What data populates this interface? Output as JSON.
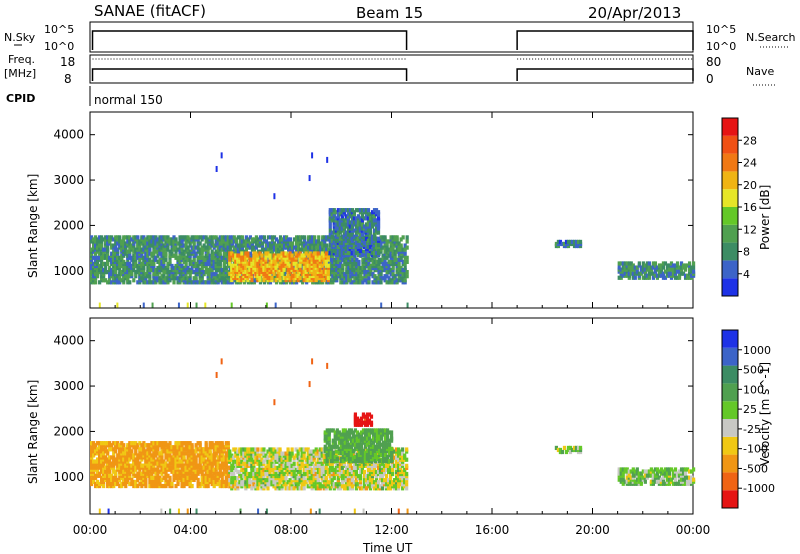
{
  "header": {
    "station": "SANAE (fitACF)",
    "beam": "Beam 15",
    "date": "20/Apr/2013"
  },
  "strips": {
    "nsky_label": "N.Sky",
    "nsky_ticks": [
      "10^5",
      "10^0"
    ],
    "nsearch_label": "N.Search",
    "nsearch_ticks": [
      "10^5",
      "10^0"
    ],
    "freq_label_1": "Freq.",
    "freq_label_2": "[MHz]",
    "freq_ticks": [
      "18",
      "8"
    ],
    "nave_label": "Nave",
    "nave_ticks": [
      "80",
      "0"
    ],
    "cpid_label": "CPID",
    "cpid_value": "normal 150"
  },
  "colors": {
    "scatter_gray": "#c8c8c4",
    "power_scale": [
      "#1e32e6",
      "#3c64c8",
      "#3c8c64",
      "#50a050",
      "#64c828",
      "#e6e628",
      "#f0b414",
      "#f07814",
      "#f05014",
      "#e61414"
    ],
    "velocity_scale": [
      "#1e32e6",
      "#3c64c8",
      "#3c8c64",
      "#50a050",
      "#64c828",
      "#c8c8c4",
      "#f0c814",
      "#f09614",
      "#f06414",
      "#e61414"
    ]
  },
  "chart_data": [
    {
      "type": "heatmap",
      "title": "Power",
      "ylabel": "Slant Range [km]",
      "xlabel": "Time UT",
      "xlim": [
        "00:00",
        "24:00"
      ],
      "ylim": [
        180,
        4500
      ],
      "x_ticks": [
        "00:00",
        "04:00",
        "08:00",
        "12:00",
        "16:00",
        "20:00",
        "00:00"
      ],
      "y_ticks": [
        1000,
        2000,
        3000,
        4000
      ],
      "colorbar": {
        "label": "Power [dB]",
        "ticks": [
          "4",
          "8",
          "12",
          "16",
          "20",
          "24",
          "28"
        ],
        "range": [
          0,
          30
        ]
      },
      "regions": [
        {
          "t_start": 0.0,
          "t_end": 12.6,
          "range_min": 700,
          "range_max": 1700,
          "value": 8
        },
        {
          "t_start": 5.5,
          "t_end": 9.5,
          "range_min": 750,
          "range_max": 1350,
          "value": 20
        },
        {
          "t_start": 9.5,
          "t_end": 11.5,
          "range_min": 1300,
          "range_max": 2300,
          "value": 6
        },
        {
          "t_start": 18.5,
          "t_end": 19.5,
          "range_min": 1500,
          "range_max": 1600,
          "value": 6
        },
        {
          "t_start": 21.0,
          "t_end": 24.0,
          "range_min": 800,
          "range_max": 1150,
          "value": 8
        }
      ]
    },
    {
      "type": "heatmap",
      "title": "Velocity",
      "ylabel": "Slant Range [km]",
      "xlabel": "Time UT",
      "xlim": [
        "00:00",
        "24:00"
      ],
      "ylim": [
        180,
        4500
      ],
      "x_ticks": [
        "00:00",
        "04:00",
        "08:00",
        "12:00",
        "16:00",
        "20:00",
        "00:00"
      ],
      "y_ticks": [
        1000,
        2000,
        3000,
        4000
      ],
      "colorbar": {
        "label": "Velocity [m s^-1]",
        "ticks": [
          "1000",
          "500",
          "100",
          "25",
          "-25",
          "-100",
          "-500",
          "-1000"
        ]
      },
      "regions": [
        {
          "t_start": 0.0,
          "t_end": 5.5,
          "range_min": 750,
          "range_max": 1700,
          "value": -150
        },
        {
          "t_start": 5.5,
          "t_end": 12.6,
          "range_min": 700,
          "range_max": 1600,
          "value": 0
        },
        {
          "t_start": 9.3,
          "t_end": 12.0,
          "range_min": 1300,
          "range_max": 2000,
          "value": 150
        },
        {
          "t_start": 10.5,
          "t_end": 11.2,
          "range_min": 2100,
          "range_max": 2350,
          "value": -600
        },
        {
          "t_start": 18.5,
          "t_end": 19.5,
          "range_min": 1500,
          "range_max": 1600,
          "value": 60
        },
        {
          "t_start": 21.0,
          "t_end": 24.0,
          "range_min": 800,
          "range_max": 1150,
          "value": 60
        }
      ]
    }
  ]
}
